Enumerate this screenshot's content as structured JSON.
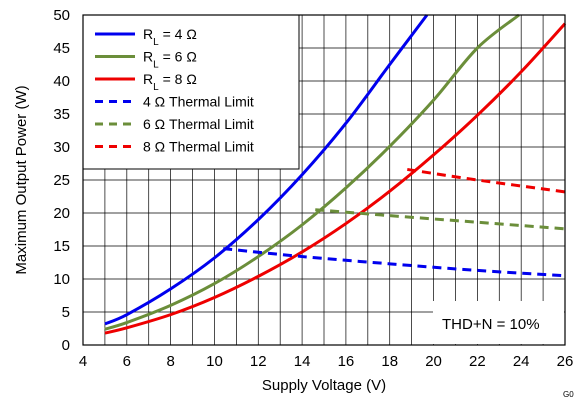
{
  "chart_data": {
    "type": "line",
    "title": "",
    "xlabel": "Supply Voltage (V)",
    "ylabel": "Maximum Output Power (W)",
    "xlim": [
      4,
      26
    ],
    "ylim": [
      0,
      50
    ],
    "xticks": [
      "4",
      "6",
      "8",
      "10",
      "12",
      "14",
      "16",
      "18",
      "20",
      "22",
      "24",
      "26"
    ],
    "yticks": [
      "0",
      "5",
      "10",
      "15",
      "20",
      "25",
      "30",
      "35",
      "40",
      "45",
      "50"
    ],
    "grid": true,
    "legend_position": "top-left",
    "annotation": "THD+N = 10%",
    "figure_code": "G0",
    "series": [
      {
        "name": "R_L = 4 Ω",
        "label": {
          "prefix": "R",
          "sub": "L",
          "suffix": " = 4 Ω"
        },
        "color": "#0000ee",
        "dash": false,
        "x": [
          5,
          6,
          8,
          10,
          12,
          14,
          16,
          18,
          19.7
        ],
        "y": [
          3.2,
          4.6,
          8.5,
          13.2,
          19.0,
          25.8,
          33.6,
          42.5,
          50.0
        ]
      },
      {
        "name": "R_L = 6 Ω",
        "label": {
          "prefix": "R",
          "sub": "L",
          "suffix": " = 6 Ω"
        },
        "color": "#6b8e3a",
        "dash": false,
        "x": [
          5,
          6,
          8,
          10,
          12,
          14,
          16,
          18,
          20,
          22,
          23.9
        ],
        "y": [
          2.4,
          3.4,
          6.0,
          9.3,
          13.4,
          18.2,
          23.8,
          30.1,
          37.1,
          45.0,
          50.0
        ]
      },
      {
        "name": "R_L = 8 Ω",
        "label": {
          "prefix": "R",
          "sub": "L",
          "suffix": " = 8 Ω"
        },
        "color": "#ee0000",
        "dash": false,
        "x": [
          5,
          6,
          8,
          10,
          12,
          14,
          16,
          18,
          20,
          22,
          24,
          26
        ],
        "y": [
          1.8,
          2.6,
          4.6,
          7.2,
          10.4,
          14.1,
          18.4,
          23.3,
          28.8,
          34.8,
          41.4,
          48.7
        ]
      },
      {
        "name": "4 Ω Thermal Limit",
        "label": {
          "prefix": "4 Ω Thermal Limit",
          "sub": "",
          "suffix": ""
        },
        "color": "#0000ee",
        "dash": true,
        "x": [
          10.4,
          14,
          18,
          22,
          26
        ],
        "y": [
          14.6,
          13.4,
          12.3,
          11.3,
          10.5
        ]
      },
      {
        "name": "6 Ω Thermal Limit",
        "label": {
          "prefix": "6 Ω Thermal Limit",
          "sub": "",
          "suffix": ""
        },
        "color": "#6b8e3a",
        "dash": true,
        "x": [
          14.6,
          18,
          22,
          26
        ],
        "y": [
          20.5,
          19.6,
          18.6,
          17.6
        ]
      },
      {
        "name": "8 Ω Thermal Limit",
        "label": {
          "prefix": "8 Ω Thermal Limit",
          "sub": "",
          "suffix": ""
        },
        "color": "#ee0000",
        "dash": true,
        "x": [
          18.8,
          22,
          26
        ],
        "y": [
          26.6,
          25.0,
          23.2
        ]
      }
    ]
  }
}
